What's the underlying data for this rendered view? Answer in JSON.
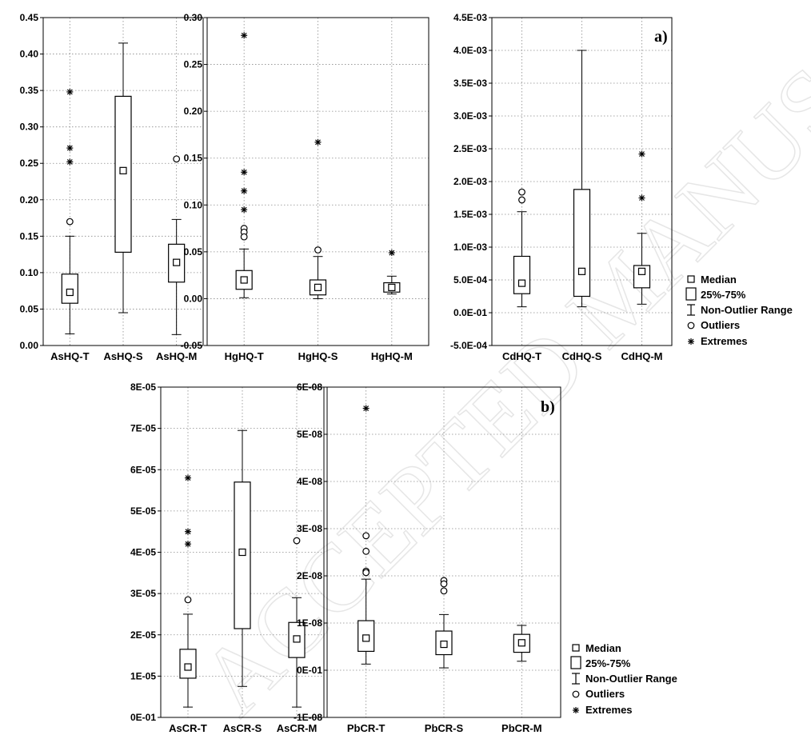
{
  "panel_labels": {
    "a": "a)",
    "b": "b)"
  },
  "watermark": "ACCEPTED MANUSCRIPT",
  "legend": {
    "median": "Median",
    "box": "25%-75%",
    "range": "Non-Outlier Range",
    "outliers": "Outliers",
    "extremes": "Extremes"
  },
  "chart_data": [
    {
      "type": "box",
      "title": "",
      "xlabel": "",
      "ylabel": "",
      "ylim": [
        0,
        0.45
      ],
      "yticks": [
        0,
        0.05,
        0.1,
        0.15,
        0.2,
        0.25,
        0.3,
        0.35,
        0.4,
        0.45
      ],
      "ytick_labels": [
        "0.00",
        "0.05",
        "0.10",
        "0.15",
        "0.20",
        "0.25",
        "0.30",
        "0.35",
        "0.40",
        "0.45"
      ],
      "categories": [
        "AsHQ-T",
        "AsHQ-S",
        "AsHQ-M"
      ],
      "boxes": [
        {
          "median": 0.073,
          "q1": 0.058,
          "q3": 0.098,
          "min": 0.016,
          "max": 0.15,
          "outliers": [
            0.17
          ],
          "extremes": [
            0.348,
            0.271,
            0.252
          ]
        },
        {
          "median": 0.24,
          "q1": 0.128,
          "q3": 0.342,
          "min": 0.045,
          "max": 0.415,
          "outliers": [],
          "extremes": []
        },
        {
          "median": 0.114,
          "q1": 0.087,
          "q3": 0.139,
          "min": 0.015,
          "max": 0.173,
          "outliers": [
            0.256
          ],
          "extremes": []
        }
      ]
    },
    {
      "type": "box",
      "title": "",
      "xlabel": "",
      "ylabel": "",
      "ylim": [
        -0.05,
        0.3
      ],
      "yticks": [
        -0.05,
        0,
        0.05,
        0.1,
        0.15,
        0.2,
        0.25,
        0.3
      ],
      "ytick_labels": [
        "-0.05",
        "0.00",
        "0.05",
        "0.10",
        "0.15",
        "0.20",
        "0.25",
        "0.30"
      ],
      "categories": [
        "HgHQ-T",
        "HgHQ-S",
        "HgHQ-M"
      ],
      "boxes": [
        {
          "median": 0.02,
          "q1": 0.01,
          "q3": 0.03,
          "min": 0.001,
          "max": 0.053,
          "outliers": [
            0.075,
            0.071,
            0.066
          ],
          "extremes": [
            0.281,
            0.135,
            0.115,
            0.095
          ]
        },
        {
          "median": 0.012,
          "q1": 0.004,
          "q3": 0.02,
          "min": 0.0,
          "max": 0.045,
          "outliers": [
            0.052
          ],
          "extremes": [
            0.167
          ]
        },
        {
          "median": 0.012,
          "q1": 0.007,
          "q3": 0.017,
          "min": 0.005,
          "max": 0.024,
          "outliers": [],
          "extremes": [
            0.049
          ]
        }
      ]
    },
    {
      "type": "box",
      "title": "",
      "xlabel": "",
      "ylabel": "",
      "ylim": [
        -0.0005,
        0.0045
      ],
      "yticks": [
        -0.0005,
        0,
        0.0005,
        0.001,
        0.0015,
        0.002,
        0.0025,
        0.003,
        0.0035,
        0.004,
        0.0045
      ],
      "ytick_labels": [
        "-5.0E-04",
        "0.0E-01",
        "5.0E-04",
        "1.0E-03",
        "1.5E-03",
        "2.0E-03",
        "2.5E-03",
        "3.0E-03",
        "3.5E-03",
        "4.0E-03",
        "4.5E-03"
      ],
      "categories": [
        "CdHQ-T",
        "CdHQ-S",
        "CdHQ-M"
      ],
      "boxes": [
        {
          "median": 0.00045,
          "q1": 0.00029,
          "q3": 0.00086,
          "min": 9e-05,
          "max": 0.00154,
          "outliers": [
            0.00184,
            0.00172
          ],
          "extremes": []
        },
        {
          "median": 0.00063,
          "q1": 0.00025,
          "q3": 0.00188,
          "min": 9e-05,
          "max": 0.004,
          "outliers": [],
          "extremes": []
        },
        {
          "median": 0.00063,
          "q1": 0.00038,
          "q3": 0.00072,
          "min": 0.00013,
          "max": 0.00121,
          "outliers": [],
          "extremes": [
            0.00242,
            0.00175
          ]
        }
      ]
    },
    {
      "type": "box",
      "title": "",
      "xlabel": "",
      "ylabel": "",
      "ylim": [
        0,
        8e-05
      ],
      "yticks": [
        0,
        1e-05,
        2e-05,
        3e-05,
        4e-05,
        5e-05,
        6e-05,
        7e-05,
        8e-05
      ],
      "ytick_labels": [
        "0E-01",
        "1E-05",
        "2E-05",
        "3E-05",
        "4E-05",
        "5E-05",
        "6E-05",
        "7E-05",
        "8E-05"
      ],
      "categories": [
        "AsCR-T",
        "AsCR-S",
        "AsCR-M"
      ],
      "boxes": [
        {
          "median": 1.22e-05,
          "q1": 9.5e-06,
          "q3": 1.65e-05,
          "min": 2.5e-06,
          "max": 2.5e-05,
          "outliers": [
            2.85e-05
          ],
          "extremes": [
            5.8e-05,
            4.5e-05,
            4.2e-05
          ]
        },
        {
          "median": 4e-05,
          "q1": 2.15e-05,
          "q3": 5.7e-05,
          "min": 7.5e-06,
          "max": 6.95e-05,
          "outliers": [],
          "extremes": []
        },
        {
          "median": 1.9e-05,
          "q1": 1.45e-05,
          "q3": 2.3e-05,
          "min": 2.5e-06,
          "max": 2.9e-05,
          "outliers": [
            4.28e-05
          ],
          "extremes": []
        }
      ]
    },
    {
      "type": "box",
      "title": "",
      "xlabel": "",
      "ylabel": "",
      "ylim": [
        -1e-08,
        6e-08
      ],
      "yticks": [
        -1e-08,
        0,
        1e-08,
        2e-08,
        3e-08,
        4e-08,
        5e-08,
        6e-08
      ],
      "ytick_labels": [
        "-1E-08",
        "0E-01",
        "1E-08",
        "2E-08",
        "3E-08",
        "4E-08",
        "5E-08",
        "6E-08"
      ],
      "categories": [
        "PbCR-T",
        "PbCR-S",
        "PbCR-M"
      ],
      "boxes": [
        {
          "median": 6.8e-09,
          "q1": 4e-09,
          "q3": 1.05e-08,
          "min": 1.3e-09,
          "max": 1.93e-08,
          "outliers": [
            2.85e-08,
            2.52e-08,
            2.1e-08,
            2.07e-08
          ],
          "extremes": [
            5.55e-08
          ]
        },
        {
          "median": 5.5e-09,
          "q1": 3.3e-09,
          "q3": 8.3e-09,
          "min": 5e-10,
          "max": 1.18e-08,
          "outliers": [
            1.9e-08,
            1.83e-08,
            1.68e-08
          ],
          "extremes": []
        },
        {
          "median": 5.8e-09,
          "q1": 3.8e-09,
          "q3": 7.6e-09,
          "min": 1.9e-09,
          "max": 9.5e-09,
          "outliers": [],
          "extremes": []
        }
      ]
    }
  ]
}
